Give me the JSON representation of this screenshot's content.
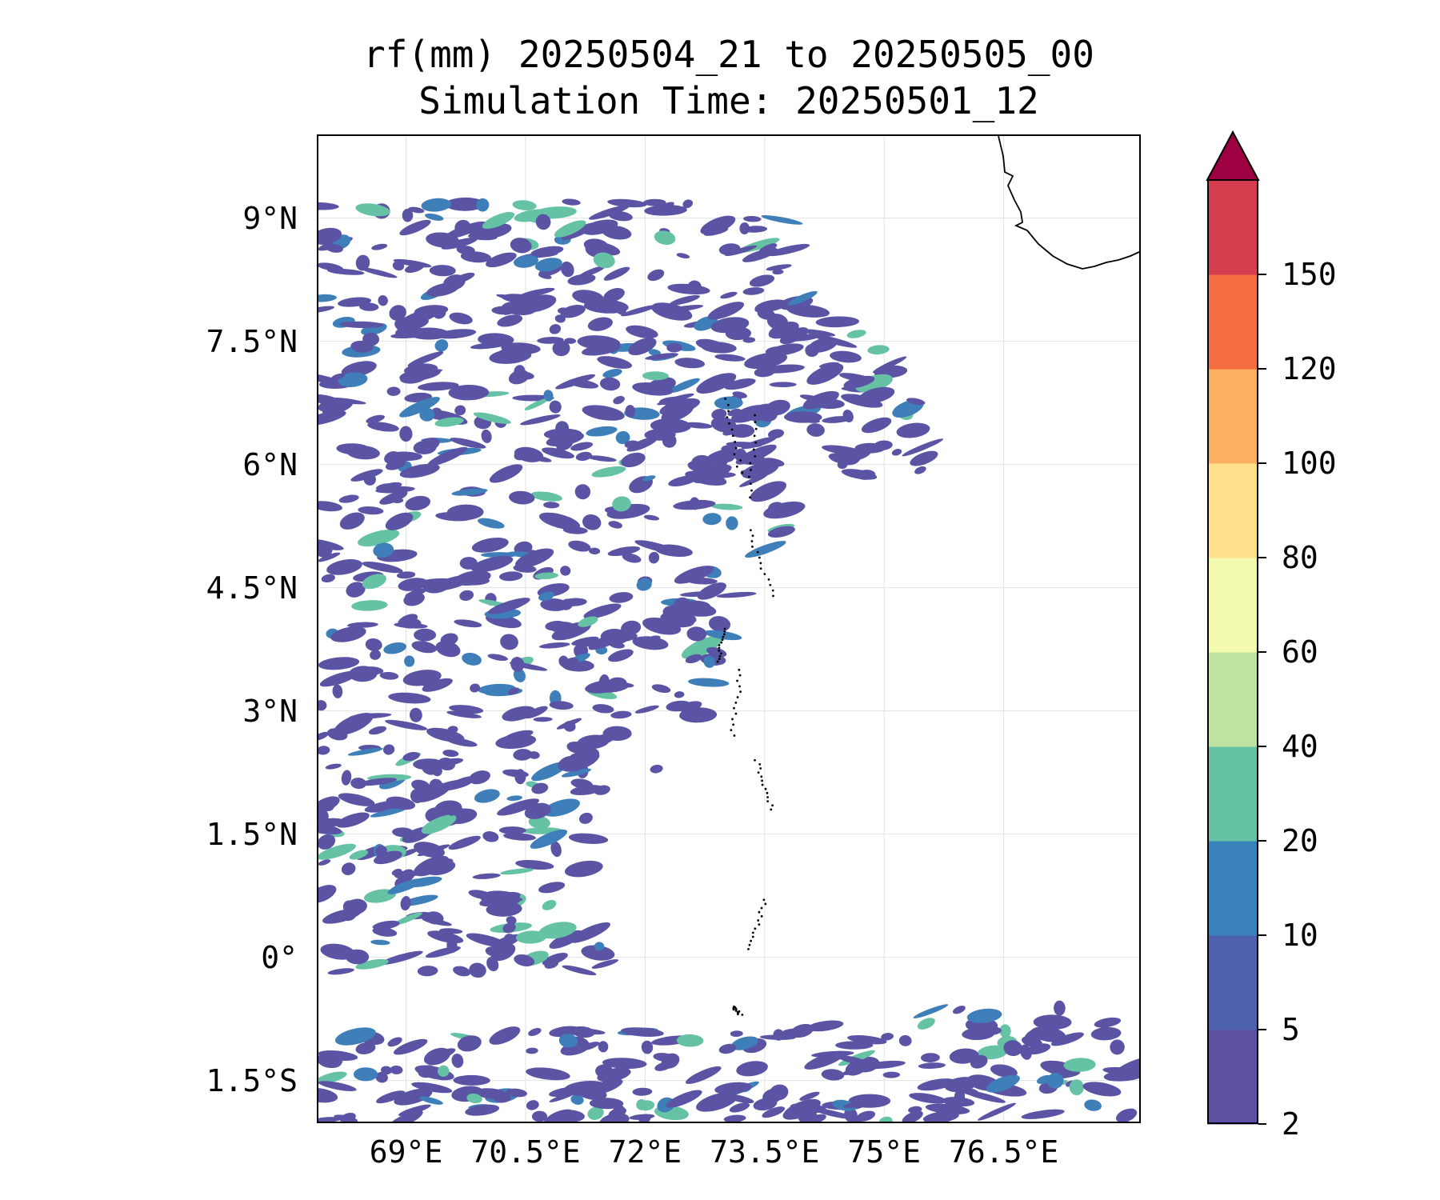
{
  "title": {
    "line1": "rf(mm) 20250504_21 to 20250505_00",
    "line2": "Simulation Time: 20250501_12"
  },
  "map": {
    "lon_range": [
      67.9,
      78.2
    ],
    "lat_range": [
      -2.0,
      10.0
    ],
    "x_ticks": [
      {
        "value": 69.0,
        "label": "69°E"
      },
      {
        "value": 70.5,
        "label": "70.5°E"
      },
      {
        "value": 72.0,
        "label": "72°E"
      },
      {
        "value": 73.5,
        "label": "73.5°E"
      },
      {
        "value": 75.0,
        "label": "75°E"
      },
      {
        "value": 76.5,
        "label": "76.5°E"
      }
    ],
    "y_ticks": [
      {
        "value": 9.0,
        "label": "9°N"
      },
      {
        "value": 7.5,
        "label": "7.5°N"
      },
      {
        "value": 6.0,
        "label": "6°N"
      },
      {
        "value": 4.5,
        "label": "4.5°N"
      },
      {
        "value": 3.0,
        "label": "3°N"
      },
      {
        "value": 1.5,
        "label": "1.5°N"
      },
      {
        "value": 0.0,
        "label": "0°"
      },
      {
        "value": -1.5,
        "label": "1.5°S"
      }
    ],
    "gridlines": true
  },
  "colorbar": {
    "levels": [
      2,
      5,
      10,
      20,
      40,
      60,
      80,
      100,
      120,
      150
    ],
    "colors": [
      "#5e4fa2",
      "#4e61ad",
      "#3a82bb",
      "#66c2a5",
      "#bde4a0",
      "#f3faad",
      "#fee08b",
      "#fdaf61",
      "#f46d43",
      "#d53e4f"
    ],
    "extend_color": "#9e0142",
    "extend": "max"
  },
  "rain_colors": {
    "light": "#5b53a4",
    "moderate": "#3f7fb9",
    "heavy": "#66c2a5"
  }
}
